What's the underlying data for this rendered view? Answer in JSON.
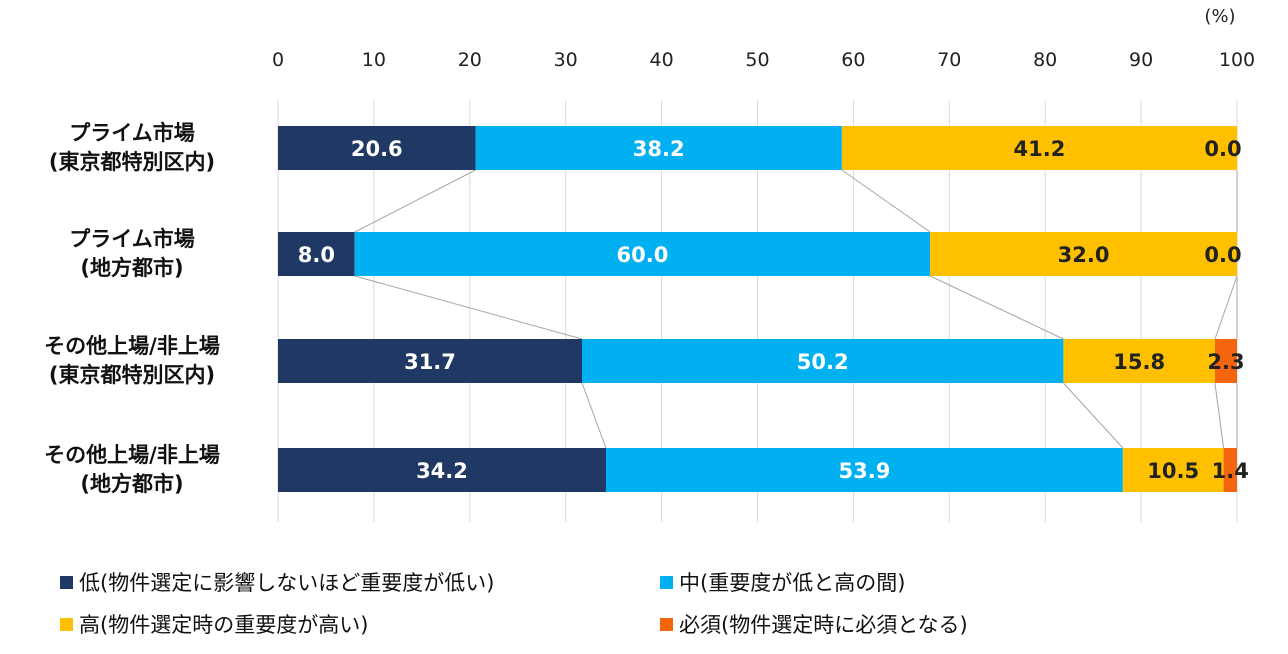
{
  "chart_data": {
    "type": "bar",
    "orientation": "horizontal",
    "stacked": true,
    "unit_label": "(%)",
    "xlim": [
      0,
      100
    ],
    "x_ticks": [
      "0",
      "10",
      "20",
      "30",
      "40",
      "50",
      "60",
      "70",
      "80",
      "90",
      "100"
    ],
    "grid": true,
    "legend_position": "bottom",
    "categories": [
      [
        "プライム市場",
        "(東京都特別区内)"
      ],
      [
        "プライム市場",
        "(地方都市)"
      ],
      [
        "その他上場/非上場",
        "(東京都特別区内)"
      ],
      [
        "その他上場/非上場",
        "(地方都市)"
      ]
    ],
    "series": [
      {
        "name": "低(物件選定に影響しないほど重要度が低い)",
        "color": "#1f3864",
        "label_color": "#ffffff",
        "values": [
          20.6,
          8.0,
          31.7,
          34.2
        ],
        "labels": [
          "20.6",
          "8.0",
          "31.7",
          "34.2"
        ]
      },
      {
        "name": "中(重要度が低と高の間)",
        "color": "#00b0f0",
        "label_color": "#ffffff",
        "values": [
          38.2,
          60.0,
          50.2,
          53.9
        ],
        "labels": [
          "38.2",
          "60.0",
          "50.2",
          "53.9"
        ]
      },
      {
        "name": "高(物件選定時の重要度が高い)",
        "color": "#ffc000",
        "label_color": "#222222",
        "values": [
          41.2,
          32.0,
          15.8,
          10.5
        ],
        "labels": [
          "41.2",
          "32.0",
          "15.8",
          "10.5"
        ]
      },
      {
        "name": "必須(物件選定時に必須となる)",
        "color": "#f4650f",
        "label_color": "#222222",
        "values": [
          0.0,
          0.0,
          2.3,
          1.4
        ],
        "labels": [
          "0.0",
          "0.0",
          "2.3",
          "1.4"
        ]
      }
    ]
  }
}
